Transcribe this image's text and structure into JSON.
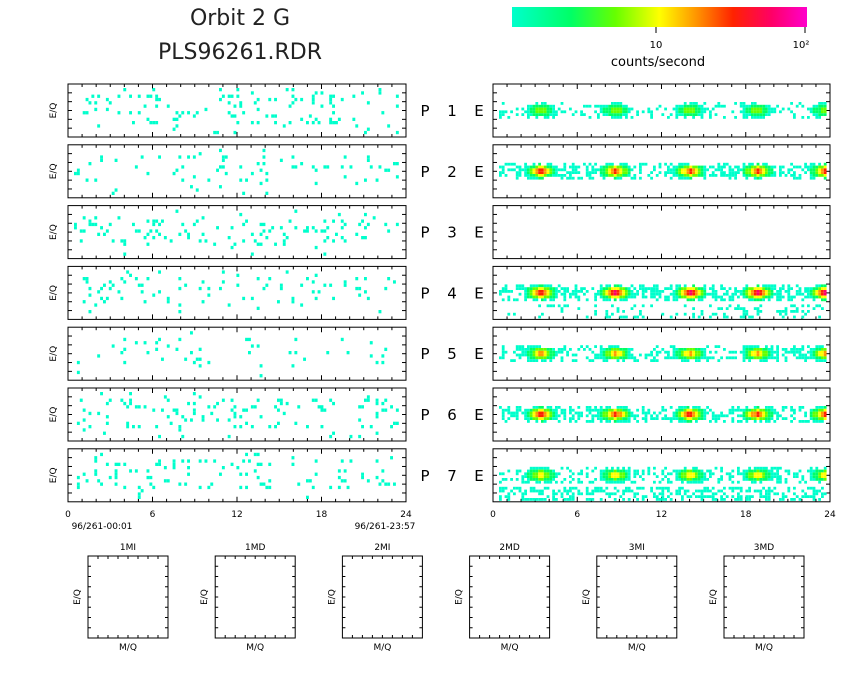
{
  "header": {
    "title": "Orbit 2 G",
    "filename": "PLS96261.RDR"
  },
  "colorbar": {
    "label": "counts/second",
    "ticks": [
      "10",
      "10²"
    ],
    "colors": [
      "#00ffcc",
      "#00ff66",
      "#66ff00",
      "#ffff00",
      "#ff9900",
      "#ff2200",
      "#ff0066",
      "#ff00cc"
    ]
  },
  "chart_data": [
    {
      "type": "heatmap",
      "name": "P-panels",
      "ylabel": "E/Q",
      "x_ticks": [
        "0",
        "6",
        "12",
        "18",
        "24"
      ],
      "xlim": [
        0,
        24
      ],
      "start_label": "96/261-00:01",
      "end_label": "96/261-23:57",
      "rows": [
        "P 1",
        "P 2",
        "P 3",
        "P 4",
        "P 5",
        "P 6",
        "P 7"
      ],
      "density": [
        0.1,
        0.07,
        0.09,
        0.07,
        0.04,
        0.09,
        0.08
      ]
    },
    {
      "type": "heatmap",
      "name": "E-panels",
      "x_ticks": [
        "0",
        "6",
        "12",
        "18",
        "24"
      ],
      "xlim": [
        0,
        24
      ],
      "rows": [
        "E",
        "E",
        "E",
        "E",
        "E",
        "E",
        "E"
      ],
      "peaks_hours": [
        3,
        8.5,
        14,
        19,
        24
      ],
      "intensity": [
        0.45,
        0.85,
        0,
        1.0,
        0.7,
        0.9,
        0.6
      ]
    },
    {
      "type": "heatmap",
      "name": "mass-panels",
      "xlabel": "M/Q",
      "ylabel": "E/Q",
      "titles": [
        "1MI",
        "1MD",
        "2MI",
        "2MD",
        "3MI",
        "3MD"
      ]
    }
  ],
  "row_labels": {
    "p": [
      "P",
      "P",
      "P",
      "P",
      "P",
      "P",
      "P"
    ],
    "num": [
      "1",
      "2",
      "3",
      "4",
      "5",
      "6",
      "7"
    ],
    "e": [
      "E",
      "E",
      "E",
      "E",
      "E",
      "E",
      "E"
    ]
  }
}
